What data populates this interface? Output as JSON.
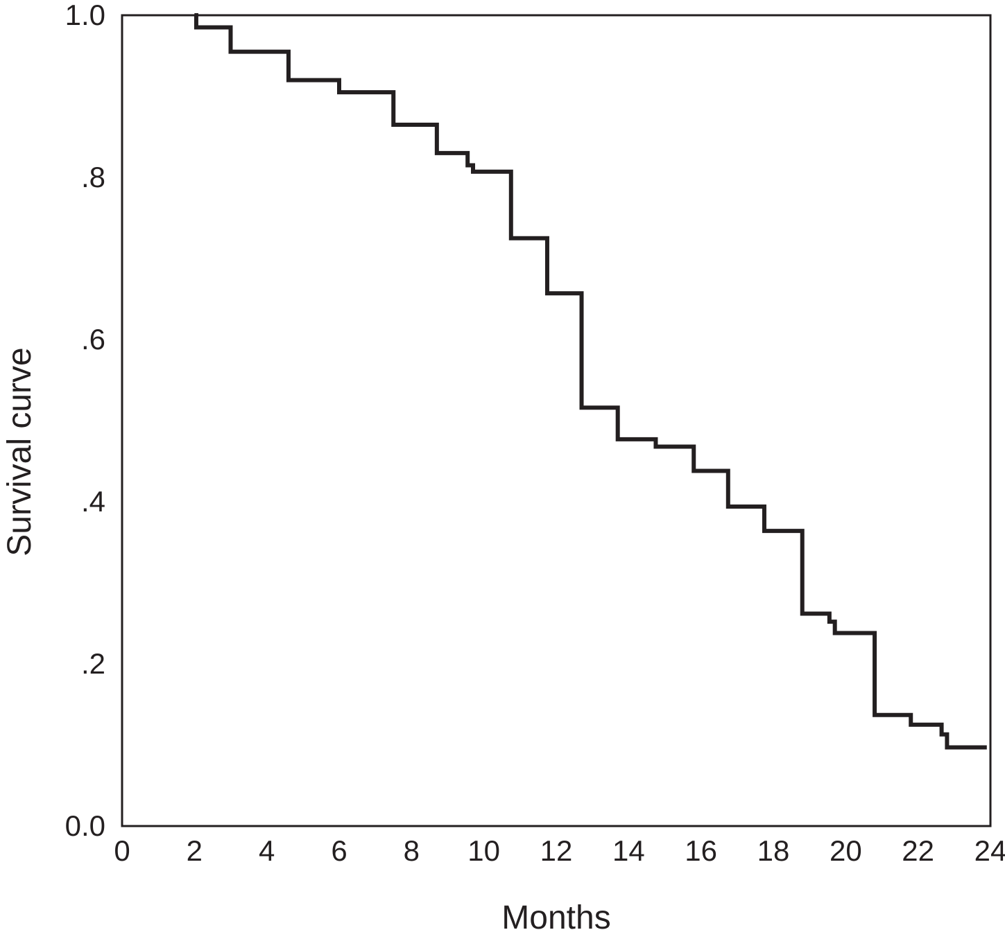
{
  "chart_data": {
    "type": "line",
    "step": true,
    "title": "",
    "xlabel": "Months",
    "ylabel": "Survival curve",
    "xlim": [
      0,
      24
    ],
    "ylim": [
      0,
      1
    ],
    "grid": false,
    "legend": "none",
    "line_color": "#231f20",
    "x_ticks": [
      {
        "value": 0,
        "label": "0"
      },
      {
        "value": 2,
        "label": "2"
      },
      {
        "value": 4,
        "label": "4"
      },
      {
        "value": 6,
        "label": "6"
      },
      {
        "value": 8,
        "label": "8"
      },
      {
        "value": 10,
        "label": "10"
      },
      {
        "value": 12,
        "label": "12"
      },
      {
        "value": 14,
        "label": "14"
      },
      {
        "value": 16,
        "label": "16"
      },
      {
        "value": 18,
        "label": "18"
      },
      {
        "value": 20,
        "label": "20"
      },
      {
        "value": 22,
        "label": "22"
      },
      {
        "value": 24,
        "label": "24"
      }
    ],
    "y_ticks": [
      {
        "value": 0,
        "label": "0.0"
      },
      {
        "value": 0.2,
        "label": ".2"
      },
      {
        "value": 0.4,
        "label": ".4"
      },
      {
        "value": 0.6,
        "label": ".6"
      },
      {
        "value": 0.8,
        "label": ".8"
      },
      {
        "value": 1.0,
        "label": "1.0"
      }
    ],
    "series": [
      {
        "points": [
          {
            "x": 2.0,
            "y": 1.0
          },
          {
            "x": 2.05,
            "y": 0.985
          },
          {
            "x": 3.0,
            "y": 0.955
          },
          {
            "x": 4.6,
            "y": 0.92
          },
          {
            "x": 6.0,
            "y": 0.905
          },
          {
            "x": 7.5,
            "y": 0.865
          },
          {
            "x": 8.7,
            "y": 0.83
          },
          {
            "x": 9.55,
            "y": 0.815
          },
          {
            "x": 9.7,
            "y": 0.807
          },
          {
            "x": 10.75,
            "y": 0.725
          },
          {
            "x": 11.75,
            "y": 0.657
          },
          {
            "x": 12.7,
            "y": 0.516
          },
          {
            "x": 13.7,
            "y": 0.477
          },
          {
            "x": 14.75,
            "y": 0.468
          },
          {
            "x": 15.8,
            "y": 0.438
          },
          {
            "x": 16.75,
            "y": 0.394
          },
          {
            "x": 17.75,
            "y": 0.364
          },
          {
            "x": 18.8,
            "y": 0.262
          },
          {
            "x": 19.55,
            "y": 0.252
          },
          {
            "x": 19.7,
            "y": 0.238
          },
          {
            "x": 20.8,
            "y": 0.137
          },
          {
            "x": 21.8,
            "y": 0.125
          },
          {
            "x": 22.65,
            "y": 0.113
          },
          {
            "x": 22.8,
            "y": 0.097
          },
          {
            "x": 23.9,
            "y": 0.097
          }
        ]
      }
    ]
  }
}
